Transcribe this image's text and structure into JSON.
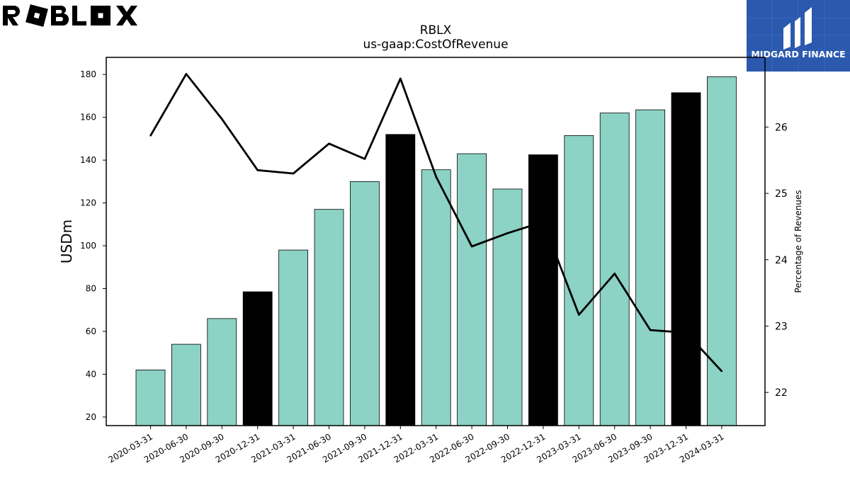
{
  "logos": {
    "left_text": "ROBLOX",
    "right_text": "MIDGARD FINANCE",
    "right_bg": "#2b59ae"
  },
  "chart_data": {
    "type": "bar",
    "title": "RBLX",
    "subtitle": "us-gaap:CostOfRevenue",
    "ylabel": "USDm",
    "y2label": "Percentage of Revenues",
    "categories": [
      "2020-03-31",
      "2020-06-30",
      "2020-09-30",
      "2020-12-31",
      "2021-03-31",
      "2021-06-30",
      "2021-09-30",
      "2021-12-31",
      "2022-03-31",
      "2022-06-30",
      "2022-09-30",
      "2022-12-31",
      "2023-03-31",
      "2023-06-30",
      "2023-09-30",
      "2023-12-31",
      "2024-03-31"
    ],
    "ylim": [
      16,
      188
    ],
    "yticks": [
      20,
      40,
      60,
      80,
      100,
      120,
      140,
      160,
      180
    ],
    "y2lim": [
      21.5,
      27.05
    ],
    "y2ticks": [
      22,
      23,
      24,
      25,
      26
    ],
    "series": [
      {
        "type": "bar",
        "values": [
          42,
          54,
          66,
          78.5,
          98,
          117,
          130,
          152,
          135.5,
          143,
          126.5,
          142.5,
          151.5,
          162,
          163.5,
          171.5,
          179
        ],
        "colors": [
          "#8cd2c5",
          "#8cd2c5",
          "#8cd2c5",
          "#000000",
          "#8cd2c5",
          "#8cd2c5",
          "#8cd2c5",
          "#000000",
          "#8cd2c5",
          "#8cd2c5",
          "#8cd2c5",
          "#000000",
          "#8cd2c5",
          "#8cd2c5",
          "#8cd2c5",
          "#000000",
          "#8cd2c5"
        ]
      },
      {
        "type": "line",
        "axis": "right",
        "color": "#000000",
        "values": [
          25.87,
          26.8,
          26.12,
          25.35,
          25.3,
          25.75,
          25.52,
          26.73,
          25.25,
          24.2,
          24.4,
          24.57,
          23.17,
          23.79,
          22.94,
          22.9,
          22.32
        ]
      }
    ]
  }
}
